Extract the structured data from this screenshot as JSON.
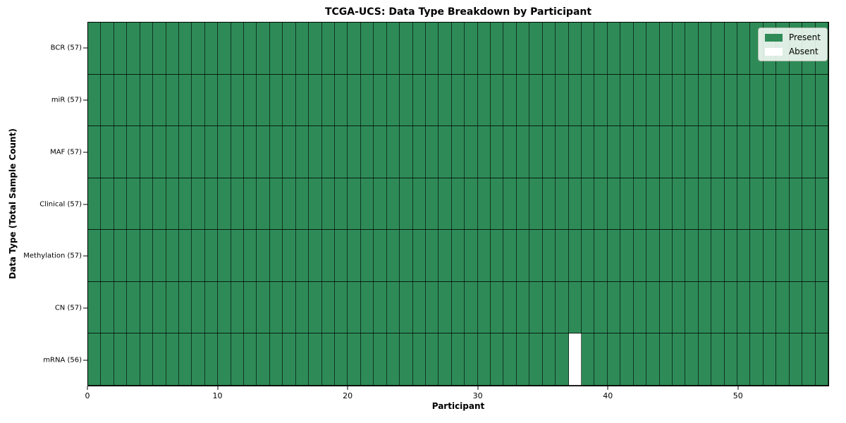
{
  "chart_data": {
    "type": "heatmap",
    "title": "TCGA-UCS: Data Type Breakdown by Participant",
    "xlabel": "Participant",
    "ylabel": "Data Type (Total Sample Count)",
    "rows": [
      {
        "label": "BCR (57)",
        "data_type": "BCR",
        "total_sample_count": 57
      },
      {
        "label": "miR (57)",
        "data_type": "miR",
        "total_sample_count": 57
      },
      {
        "label": "MAF (57)",
        "data_type": "MAF",
        "total_sample_count": 57
      },
      {
        "label": "Clinical (57)",
        "data_type": "Clinical",
        "total_sample_count": 57
      },
      {
        "label": "Methylation (57)",
        "data_type": "Methylation",
        "total_sample_count": 57
      },
      {
        "label": "CN (57)",
        "data_type": "CN",
        "total_sample_count": 57
      },
      {
        "label": "mRNA (56)",
        "data_type": "mRNA",
        "total_sample_count": 56
      }
    ],
    "n_participants": 57,
    "x_axis": {
      "min": 0,
      "max": 57,
      "ticks": [
        0,
        10,
        20,
        30,
        40,
        50
      ]
    },
    "default_cell_state": "present",
    "absent_cells": [
      {
        "row_label": "mRNA (56)",
        "row_index": 6,
        "participant_index": 37
      }
    ],
    "legend": {
      "position": "upper-right",
      "entries": [
        {
          "label": "Present",
          "color": "#2e8b57"
        },
        {
          "label": "Absent",
          "color": "#ffffff"
        }
      ]
    },
    "colors": {
      "present": "#2e8b57",
      "absent": "#ffffff",
      "cell_edge": "#000000",
      "axis_frame": "#000000",
      "background": "#ffffff"
    },
    "grid": "cell-borders-on",
    "layout_hint": "7 rows (data types) x 57 columns (participants); all cells present except mRNA for participant 37"
  }
}
